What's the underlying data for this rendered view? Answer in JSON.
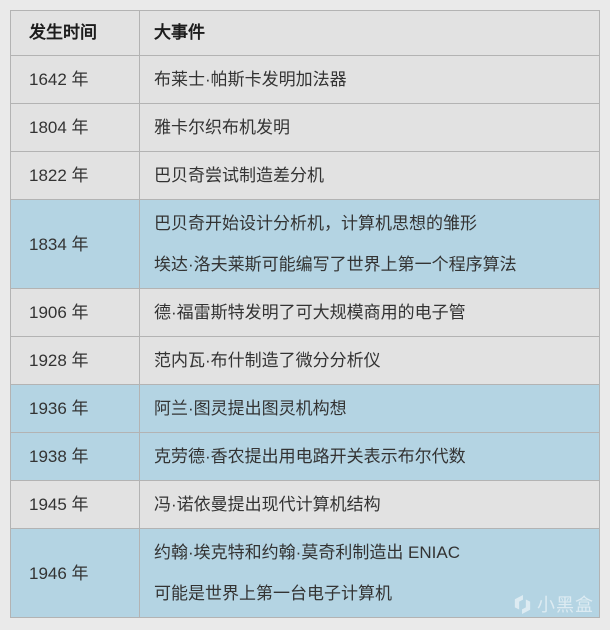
{
  "table": {
    "headers": [
      {
        "label": "发生时间"
      },
      {
        "label": "大事件"
      }
    ],
    "rows": [
      {
        "time": "1642 年",
        "event_lines": [
          "布莱士·帕斯卡发明加法器"
        ],
        "highlighted": false
      },
      {
        "time": "1804 年",
        "event_lines": [
          "雅卡尔织布机发明"
        ],
        "highlighted": false
      },
      {
        "time": "1822 年",
        "event_lines": [
          "巴贝奇尝试制造差分机"
        ],
        "highlighted": false
      },
      {
        "time": "1834 年",
        "event_lines": [
          "巴贝奇开始设计分析机，计算机思想的雏形",
          "埃达·洛夫莱斯可能编写了世界上第一个程序算法"
        ],
        "highlighted": true
      },
      {
        "time": "1906 年",
        "event_lines": [
          "德·福雷斯特发明了可大规模商用的电子管"
        ],
        "highlighted": false
      },
      {
        "time": "1928 年",
        "event_lines": [
          "范内瓦·布什制造了微分分析仪"
        ],
        "highlighted": false
      },
      {
        "time": "1936 年",
        "event_lines": [
          "阿兰·图灵提出图灵机构想"
        ],
        "highlighted": true
      },
      {
        "time": "1938 年",
        "event_lines": [
          "克劳德·香农提出用电路开关表示布尔代数"
        ],
        "highlighted": true
      },
      {
        "time": "1945 年",
        "event_lines": [
          "冯·诺依曼提出现代计算机结构"
        ],
        "highlighted": false
      },
      {
        "time": "1946 年",
        "event_lines": [
          "约翰·埃克特和约翰·莫奇利制造出 ENIAC",
          "可能是世界上第一台电子计算机"
        ],
        "highlighted": true
      }
    ]
  },
  "watermark": {
    "label": "小黑盒",
    "logo_icon": "heybox-logo"
  },
  "colors": {
    "page_bg": "#eaeaea",
    "row_bg": "#e2e2e2",
    "highlight_row": "#b4d4e3",
    "border": "#b3b3b3",
    "text": "#333333"
  }
}
